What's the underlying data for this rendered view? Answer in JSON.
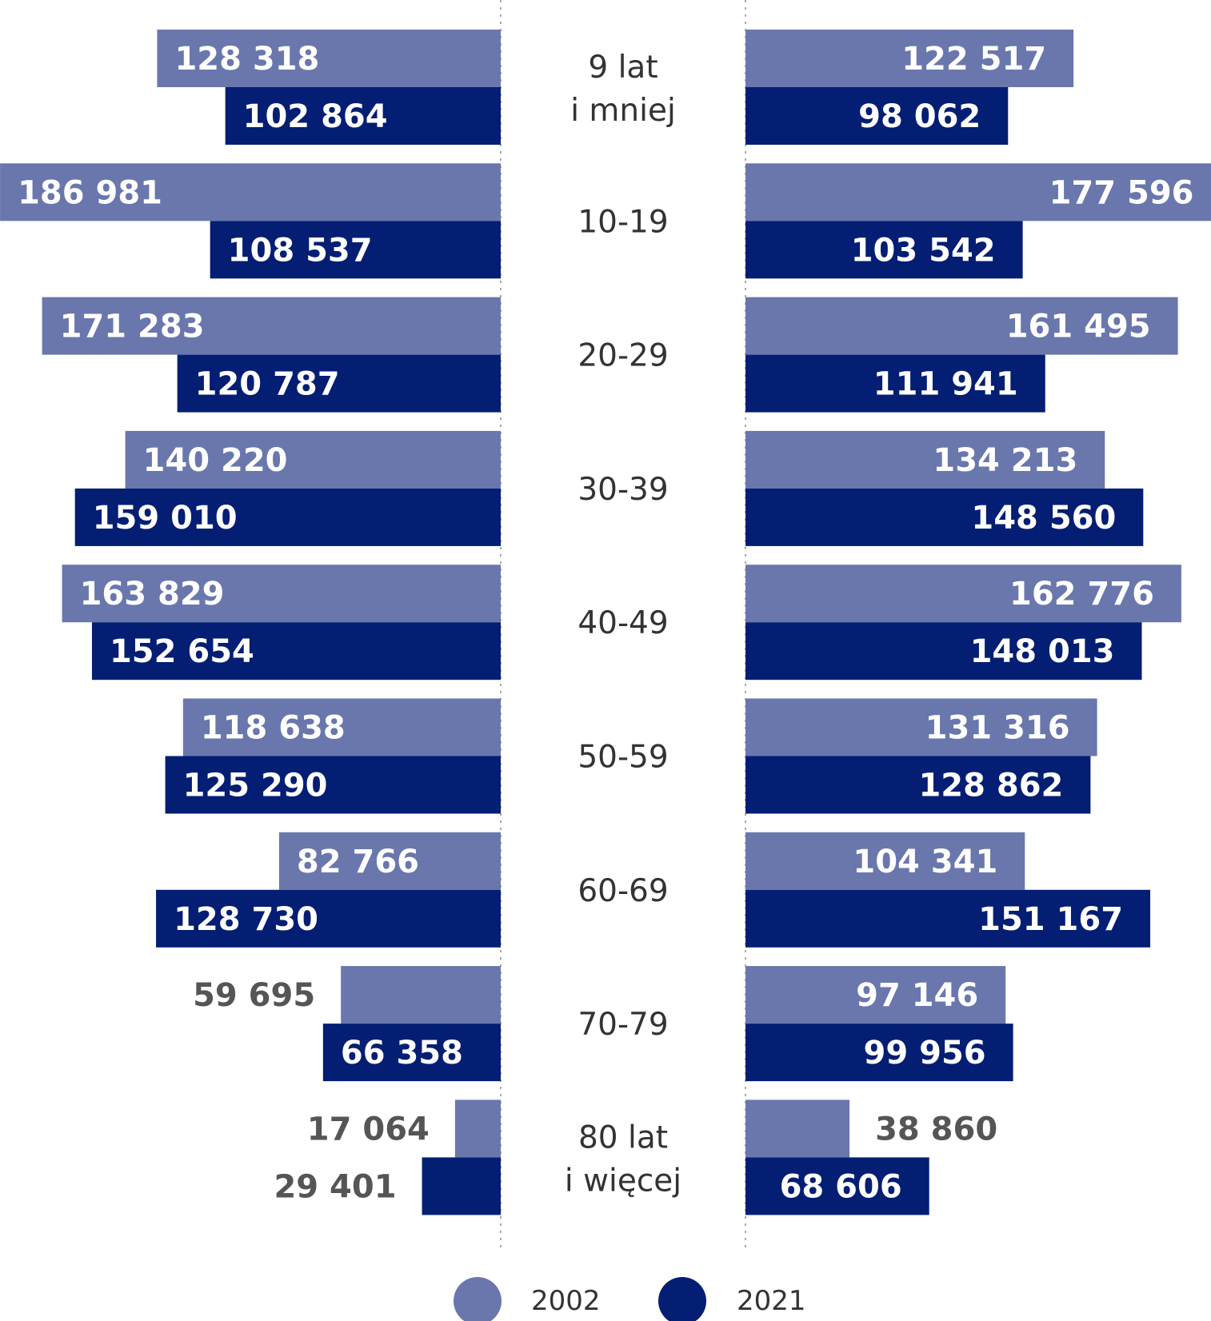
{
  "chart_data": {
    "type": "bar",
    "categories": [
      [
        "9 lat",
        "i mniej"
      ],
      [
        "10-19"
      ],
      [
        "20-29"
      ],
      [
        "30-39"
      ],
      [
        "40-49"
      ],
      [
        "50-59"
      ],
      [
        "60-69"
      ],
      [
        "70-79"
      ],
      [
        "80 lat",
        "i więcej"
      ]
    ],
    "left": {
      "v2002": [
        128318,
        186981,
        171283,
        140220,
        163829,
        118638,
        82766,
        59695,
        17064
      ],
      "v2021": [
        102864,
        108537,
        120787,
        159010,
        152654,
        125290,
        128730,
        66358,
        29401
      ],
      "labels2002": [
        "128 318",
        "186 981",
        "171 283",
        "140 220",
        "163 829",
        "118 638",
        "82 766",
        "59 695",
        "17 064"
      ],
      "labels2021": [
        "102 864",
        "108 537",
        "120 787",
        "159 010",
        "152 654",
        "125 290",
        "128 730",
        "66 358",
        "29 401"
      ]
    },
    "right": {
      "v2002": [
        122517,
        177596,
        161495,
        134213,
        162776,
        131316,
        104341,
        97146,
        38860
      ],
      "v2021": [
        98062,
        103542,
        111941,
        148560,
        148013,
        128862,
        151167,
        99956,
        68606
      ],
      "labels2002": [
        "122 517",
        "177 596",
        "161 495",
        "134 213",
        "162 776",
        "131 316",
        "104 341",
        "97 146",
        "38 860"
      ],
      "labels2021": [
        "98 062",
        "103 542",
        "111 941",
        "148 560",
        "148 013",
        "128 862",
        "151 167",
        "99 956",
        "68 606"
      ]
    },
    "series": [
      {
        "name": "2002",
        "color": "#6a77ad"
      },
      {
        "name": "2021",
        "color": "#031e73"
      }
    ],
    "outside_label_color": "#555555",
    "inside_label_color": "#ffffff"
  }
}
